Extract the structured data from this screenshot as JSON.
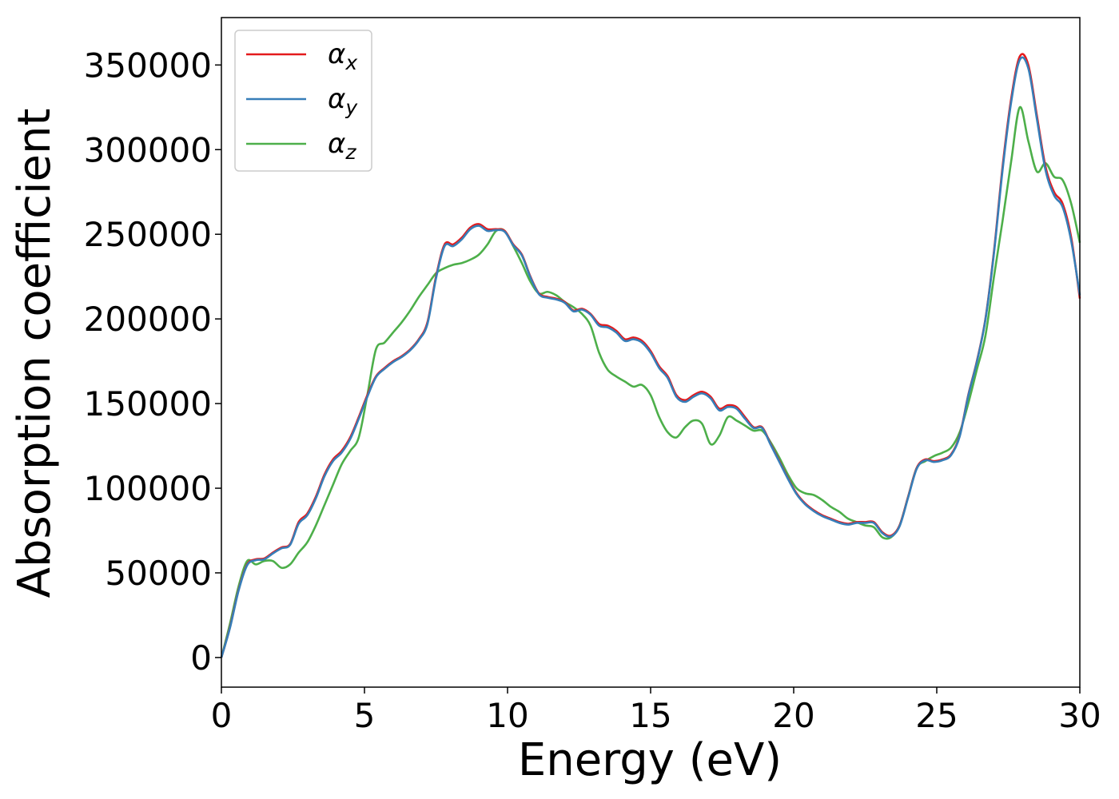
{
  "chart_data": {
    "type": "line",
    "title": "",
    "xlabel": "Energy (eV)",
    "ylabel": "Absorption coefficient",
    "xlim": [
      0,
      30
    ],
    "ylim": [
      -17500,
      378000
    ],
    "xticks": [
      0,
      5,
      10,
      15,
      20,
      25,
      30
    ],
    "xtick_labels": [
      "0",
      "5",
      "10",
      "15",
      "20",
      "25",
      "30"
    ],
    "yticks": [
      0,
      50000,
      100000,
      150000,
      200000,
      250000,
      300000,
      350000
    ],
    "ytick_labels": [
      "0",
      "50000",
      "100000",
      "150000",
      "200000",
      "250000",
      "300000",
      "350000"
    ],
    "grid": false,
    "legend_position": "top-left",
    "x": [
      0,
      0.3,
      0.6,
      0.9,
      1.2,
      1.5,
      1.8,
      2.1,
      2.4,
      2.7,
      3.0,
      3.3,
      3.6,
      3.9,
      4.2,
      4.5,
      4.8,
      5.1,
      5.4,
      5.7,
      6.0,
      6.3,
      6.6,
      6.9,
      7.2,
      7.5,
      7.8,
      8.1,
      8.4,
      8.7,
      9.0,
      9.3,
      9.6,
      9.9,
      10.2,
      10.5,
      10.8,
      11.1,
      11.4,
      11.7,
      12.0,
      12.3,
      12.6,
      12.9,
      13.2,
      13.5,
      13.8,
      14.1,
      14.4,
      14.7,
      15.0,
      15.3,
      15.6,
      15.9,
      16.2,
      16.5,
      16.8,
      17.1,
      17.4,
      17.7,
      18.0,
      18.3,
      18.6,
      18.9,
      19.2,
      19.5,
      19.8,
      20.1,
      20.4,
      20.7,
      21.0,
      21.3,
      21.6,
      21.9,
      22.2,
      22.5,
      22.8,
      23.1,
      23.4,
      23.7,
      24.0,
      24.3,
      24.6,
      24.9,
      25.2,
      25.5,
      25.8,
      26.1,
      26.4,
      26.7,
      27.0,
      27.3,
      27.6,
      27.9,
      28.2,
      28.5,
      28.8,
      29.1,
      29.4,
      29.7,
      30.0
    ],
    "series": [
      {
        "name": "α_x",
        "color": "#e41a1c",
        "values": [
          0,
          18000,
          40000,
          55000,
          58000,
          58500,
          62000,
          65000,
          67000,
          80000,
          85000,
          95000,
          108000,
          117000,
          122000,
          130000,
          142000,
          155000,
          166000,
          171000,
          175000,
          178000,
          182000,
          188000,
          198000,
          225000,
          244000,
          244000,
          248000,
          254000,
          256000,
          253000,
          253000,
          252000,
          244000,
          238000,
          225000,
          215000,
          213000,
          212000,
          210000,
          205000,
          206000,
          203000,
          197000,
          196000,
          193000,
          188000,
          189000,
          187000,
          181000,
          172000,
          166000,
          155000,
          152000,
          155000,
          157000,
          154000,
          147000,
          149000,
          148000,
          142000,
          136000,
          136000,
          126000,
          116000,
          106000,
          97000,
          91000,
          87000,
          84000,
          82000,
          80000,
          79000,
          80000,
          80000,
          80000,
          74000,
          72000,
          78000,
          95000,
          112000,
          117000,
          116000,
          117000,
          120000,
          131000,
          155000,
          175000,
          200000,
          240000,
          290000,
          330000,
          355000,
          350000,
          320000,
          290000,
          275000,
          268000,
          248000,
          212000
        ]
      },
      {
        "name": "α_y",
        "color": "#377eb8",
        "values": [
          0,
          17500,
          39500,
          54500,
          57500,
          58000,
          61500,
          64500,
          66500,
          79000,
          84000,
          94000,
          107000,
          116000,
          121000,
          129000,
          141000,
          154000,
          165500,
          170500,
          174500,
          177500,
          181500,
          187500,
          197000,
          224000,
          243000,
          243000,
          247000,
          253000,
          255000,
          252000,
          252500,
          251500,
          243500,
          237500,
          224500,
          214500,
          212500,
          211500,
          209500,
          204500,
          205500,
          202500,
          196000,
          195000,
          192000,
          187000,
          188000,
          186000,
          180000,
          171000,
          165000,
          154000,
          151000,
          154000,
          156000,
          153000,
          146000,
          148000,
          147000,
          141000,
          135500,
          135500,
          125500,
          115500,
          105500,
          96500,
          90500,
          86500,
          83500,
          81500,
          79500,
          78500,
          79500,
          79500,
          79500,
          73500,
          71500,
          77500,
          94500,
          111500,
          116500,
          115500,
          116500,
          119500,
          130500,
          154500,
          174500,
          199500,
          239000,
          288000,
          328000,
          353000,
          348000,
          318000,
          288000,
          273000,
          266000,
          246000,
          214000
        ]
      },
      {
        "name": "α_z",
        "color": "#4daf4a",
        "values": [
          0,
          20000,
          42000,
          57000,
          55000,
          57000,
          57000,
          53000,
          55000,
          62000,
          68000,
          78000,
          90000,
          102000,
          114000,
          122000,
          130000,
          155000,
          182000,
          186000,
          192000,
          198000,
          205000,
          213000,
          220000,
          227000,
          230000,
          232000,
          233000,
          235000,
          238000,
          244000,
          252000,
          252000,
          243000,
          233000,
          222000,
          215000,
          216000,
          214000,
          210000,
          207000,
          203000,
          196000,
          180000,
          170000,
          166000,
          163000,
          160000,
          161000,
          155000,
          142000,
          133000,
          130000,
          136000,
          140000,
          138000,
          126000,
          131000,
          142000,
          140000,
          137000,
          134000,
          134000,
          127000,
          118000,
          108000,
          100000,
          97000,
          96000,
          93000,
          89000,
          86000,
          82000,
          80000,
          78000,
          77000,
          71000,
          71000,
          78000,
          95000,
          112000,
          116000,
          119000,
          121000,
          124000,
          133000,
          150000,
          170000,
          190000,
          225000,
          258000,
          293000,
          325000,
          305000,
          287000,
          292000,
          284000,
          282000,
          268000,
          245000
        ]
      }
    ]
  }
}
